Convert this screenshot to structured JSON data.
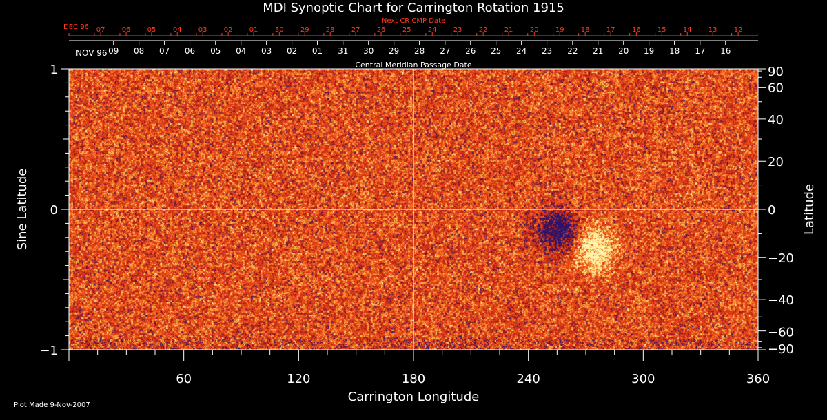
{
  "chart_data": {
    "type": "heatmap",
    "title": "MDI Synoptic Chart for Carrington Rotation 1915",
    "xlabel": "Carrington Longitude",
    "ylabel_left": "Sine Latitude",
    "ylabel_right": "Latitude",
    "xlim": [
      0,
      360
    ],
    "ylim": [
      -1,
      1
    ],
    "x_ticks": [
      {
        "value": 60,
        "label": "60"
      },
      {
        "value": 120,
        "label": "120"
      },
      {
        "value": 180,
        "label": "180"
      },
      {
        "value": 240,
        "label": "240"
      },
      {
        "value": 300,
        "label": "300"
      },
      {
        "value": 360,
        "label": "360"
      }
    ],
    "y_left_ticks": [
      {
        "value": 1,
        "label": "1"
      },
      {
        "value": 0,
        "label": "0"
      },
      {
        "value": -1,
        "label": "−1"
      }
    ],
    "y_right_ticks": [
      {
        "value": 90,
        "label": "90"
      },
      {
        "value": 60,
        "label": "60"
      },
      {
        "value": 40,
        "label": "40"
      },
      {
        "value": 20,
        "label": "20"
      },
      {
        "value": 0,
        "label": "0"
      },
      {
        "value": -20,
        "label": "−20"
      },
      {
        "value": -40,
        "label": "−40"
      },
      {
        "value": -60,
        "label": "−60"
      },
      {
        "value": -90,
        "label": "−90"
      }
    ],
    "reference_lines": {
      "longitude": 180,
      "sine_latitude": 0
    },
    "top_axis": {
      "title": "Next CR CMP Date",
      "month_label": "DEC 96",
      "dates": [
        {
          "longitude": 16.6,
          "label": "07"
        },
        {
          "longitude": 29.9,
          "label": "06"
        },
        {
          "longitude": 43.2,
          "label": "05"
        },
        {
          "longitude": 56.6,
          "label": "04"
        },
        {
          "longitude": 69.9,
          "label": "03"
        },
        {
          "longitude": 83.2,
          "label": "02"
        },
        {
          "longitude": 96.5,
          "label": "01"
        },
        {
          "longitude": 109.9,
          "label": "30"
        },
        {
          "longitude": 123.2,
          "label": "29"
        },
        {
          "longitude": 136.5,
          "label": "28"
        },
        {
          "longitude": 149.8,
          "label": "27"
        },
        {
          "longitude": 163.1,
          "label": "26"
        },
        {
          "longitude": 176.5,
          "label": "25"
        },
        {
          "longitude": 189.8,
          "label": "24"
        },
        {
          "longitude": 203.1,
          "label": "23"
        },
        {
          "longitude": 216.4,
          "label": "22"
        },
        {
          "longitude": 229.7,
          "label": "21"
        },
        {
          "longitude": 243.1,
          "label": "20"
        },
        {
          "longitude": 256.4,
          "label": "19"
        },
        {
          "longitude": 269.7,
          "label": "18"
        },
        {
          "longitude": 283.0,
          "label": "17"
        },
        {
          "longitude": 296.4,
          "label": "16"
        },
        {
          "longitude": 309.7,
          "label": "15"
        },
        {
          "longitude": 323.0,
          "label": "14"
        },
        {
          "longitude": 336.3,
          "label": "13"
        },
        {
          "longitude": 349.6,
          "label": "12"
        }
      ]
    },
    "bottom_date_axis": {
      "title": "Central Meridian Passage Date",
      "month_label": "NOV 96",
      "dates": [
        {
          "longitude": 23.3,
          "label": "09"
        },
        {
          "longitude": 36.6,
          "label": "08"
        },
        {
          "longitude": 49.9,
          "label": "07"
        },
        {
          "longitude": 63.2,
          "label": "06"
        },
        {
          "longitude": 76.6,
          "label": "05"
        },
        {
          "longitude": 89.9,
          "label": "04"
        },
        {
          "longitude": 103.2,
          "label": "03"
        },
        {
          "longitude": 116.5,
          "label": "02"
        },
        {
          "longitude": 129.8,
          "label": "01"
        },
        {
          "longitude": 143.2,
          "label": "31"
        },
        {
          "longitude": 156.5,
          "label": "30"
        },
        {
          "longitude": 169.8,
          "label": "29"
        },
        {
          "longitude": 183.1,
          "label": "28"
        },
        {
          "longitude": 196.5,
          "label": "27"
        },
        {
          "longitude": 209.8,
          "label": "26"
        },
        {
          "longitude": 223.1,
          "label": "25"
        },
        {
          "longitude": 236.4,
          "label": "24"
        },
        {
          "longitude": 249.7,
          "label": "23"
        },
        {
          "longitude": 263.1,
          "label": "22"
        },
        {
          "longitude": 276.4,
          "label": "21"
        },
        {
          "longitude": 289.7,
          "label": "20"
        },
        {
          "longitude": 303.0,
          "label": "19"
        },
        {
          "longitude": 316.3,
          "label": "18"
        },
        {
          "longitude": 329.7,
          "label": "17"
        },
        {
          "longitude": 343.0,
          "label": "16"
        }
      ]
    },
    "active_regions": [
      {
        "polarity": "negative",
        "longitude": 255,
        "sine_latitude": -0.15
      },
      {
        "polarity": "positive",
        "longitude": 275,
        "sine_latitude": -0.28
      }
    ],
    "colors": {
      "background": "#000000",
      "axis": "#ffffff",
      "top_axis": "#ff3a1c",
      "map_base": "#e8481a",
      "positive_field": "#fff6b0",
      "negative_field": "#2a1a78"
    }
  },
  "footer": {
    "plot_made": "Plot Made  9-Nov-2007"
  }
}
